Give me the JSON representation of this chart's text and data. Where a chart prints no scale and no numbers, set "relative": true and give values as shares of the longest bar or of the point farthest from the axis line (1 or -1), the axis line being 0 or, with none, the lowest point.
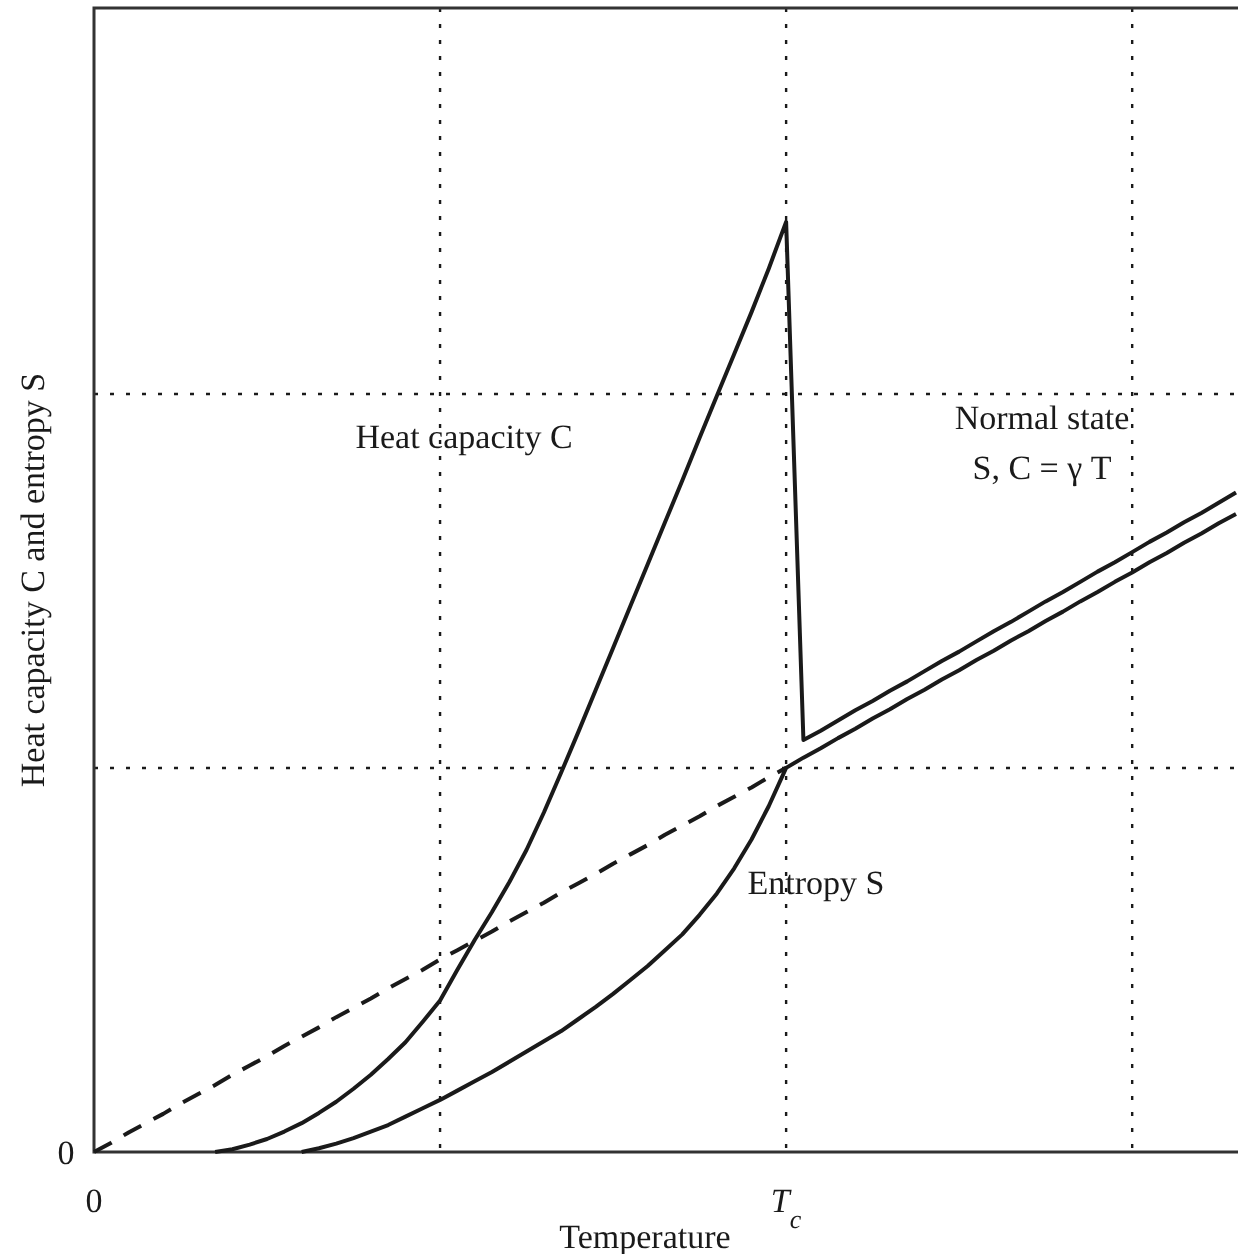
{
  "chart_data": {
    "type": "line",
    "relative": true,
    "xlabel": "Temperature",
    "ylabel": "Heat capacity C and entropy S",
    "categories": [
      "0",
      null,
      null,
      null,
      null,
      null,
      null,
      null,
      null,
      null,
      null,
      null,
      null,
      null,
      null,
      null,
      null,
      null,
      null,
      null,
      null,
      null,
      null,
      null,
      null,
      null,
      null,
      null,
      null,
      null,
      null,
      null,
      null,
      null,
      null,
      null,
      null,
      null,
      null,
      null,
      "T$_{c}$",
      null,
      null,
      null,
      null,
      null,
      null,
      null,
      null,
      null,
      null,
      null,
      null,
      null,
      null,
      null,
      null,
      null,
      null,
      null,
      null,
      null,
      null,
      null,
      null,
      null,
      null
    ],
    "series": [
      {
        "color": "#1a1a1a",
        "line_style": "solid",
        "values": [
          null,
          null,
          null,
          null,
          null,
          null,
          null,
          0,
          0.003,
          0.008,
          0.014,
          0.022,
          0.031,
          0.042,
          0.054,
          0.068,
          0.083,
          0.1,
          0.118,
          0.14,
          0.163,
          0.196,
          0.228,
          0.258,
          0.29,
          0.325,
          0.365,
          0.408,
          0.452,
          0.497,
          0.542,
          0.587,
          0.632,
          0.677,
          0.722,
          0.768,
          0.813,
          0.858,
          0.903,
          0.95,
          1,
          0.443,
          0.453,
          0.464,
          0.475,
          0.485,
          0.496,
          0.506,
          0.517,
          0.528,
          0.538,
          0.549,
          0.56,
          0.57,
          0.581,
          0.592,
          0.602,
          0.613,
          0.624,
          0.634,
          0.645,
          0.656,
          0.666,
          0.677,
          0.687,
          0.698,
          0.709
        ]
      },
      {
        "color": "#1a1a1a",
        "line_style": "solid",
        "values": [
          null,
          null,
          null,
          null,
          null,
          null,
          null,
          null,
          null,
          null,
          null,
          null,
          0,
          0.004,
          0.009,
          0.015,
          0.022,
          0.029,
          0.038,
          0.047,
          0.056,
          0.066,
          0.076,
          0.086,
          0.097,
          0.108,
          0.119,
          0.13,
          0.143,
          0.156,
          0.17,
          0.185,
          0.2,
          0.217,
          0.234,
          0.255,
          0.278,
          0.305,
          0.336,
          0.372,
          0.413,
          0.424,
          0.434,
          0.445,
          0.455,
          0.466,
          0.476,
          0.487,
          0.497,
          0.508,
          0.518,
          0.529,
          0.539,
          0.55,
          0.56,
          0.571,
          0.581,
          0.592,
          0.602,
          0.613,
          0.623,
          0.634,
          0.644,
          0.655,
          0.665,
          0.676,
          0.686
        ]
      },
      {
        "color": "#1a1a1a",
        "line_style": "dashed",
        "values": [
          0,
          0.01,
          0.021,
          0.031,
          0.041,
          0.052,
          0.062,
          0.072,
          0.083,
          0.093,
          0.103,
          0.114,
          0.124,
          0.134,
          0.145,
          0.155,
          0.165,
          0.176,
          0.186,
          0.196,
          0.207,
          0.217,
          0.227,
          0.237,
          0.248,
          0.258,
          0.268,
          0.279,
          0.289,
          0.299,
          0.31,
          0.32,
          0.33,
          0.341,
          0.351,
          0.361,
          0.372,
          0.382,
          0.392,
          0.403,
          0.413,
          null,
          null,
          null,
          null,
          null,
          null,
          null,
          null,
          null,
          null,
          null,
          null,
          null,
          null,
          null,
          null,
          null,
          null,
          null,
          null,
          null,
          null,
          null,
          null,
          null,
          null
        ]
      }
    ],
    "grid": true,
    "annotations": [
      "Heat capacity C",
      "Normal state\nS, C = γ T",
      "Entropy S",
      "0"
    ]
  }
}
